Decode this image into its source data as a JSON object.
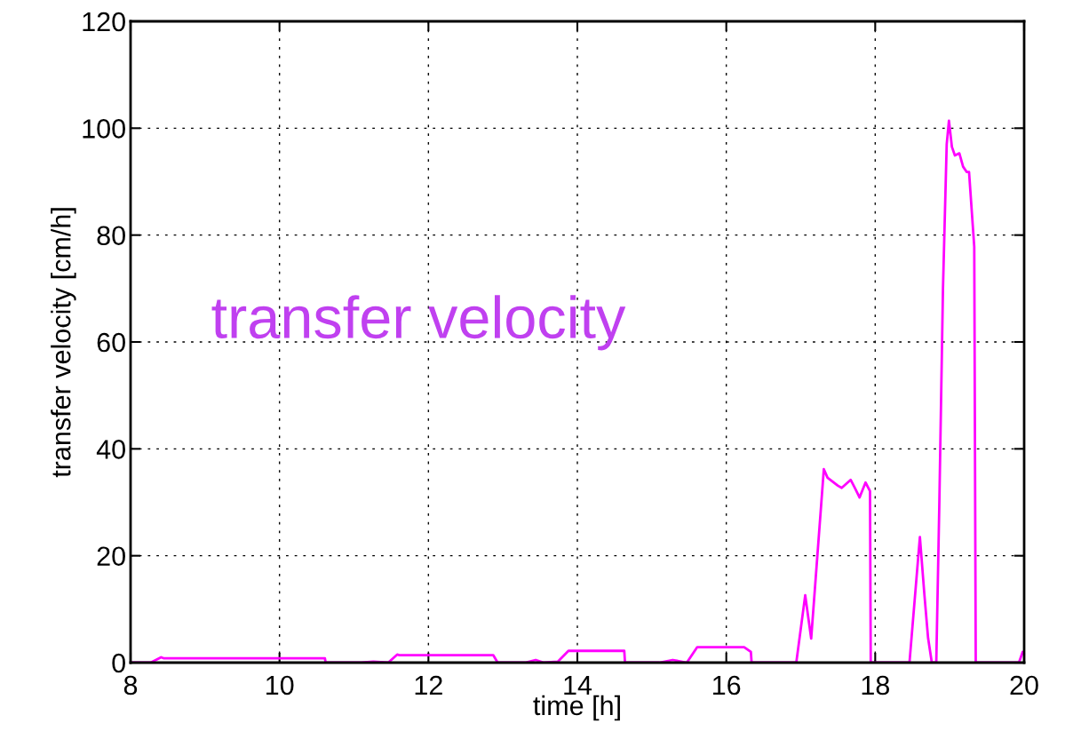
{
  "chart_data": {
    "type": "line",
    "xlabel": "time [h]",
    "ylabel": "transfer velocity [cm/h]",
    "annotations": [
      "transfer velocity"
    ],
    "series": [
      {
        "color": "#ff00ff",
        "x": [
          8.0,
          8.27,
          8.41,
          8.45,
          10.61,
          10.62,
          11.1,
          11.26,
          11.46,
          11.58,
          11.61,
          12.87,
          12.93,
          13.3,
          13.44,
          13.55,
          13.74,
          13.88,
          14.63,
          14.64,
          15.1,
          15.28,
          15.47,
          15.61,
          16.24,
          16.33,
          16.34,
          16.94,
          17.06,
          17.14,
          17.31,
          17.36,
          17.5,
          17.55,
          17.67,
          17.73,
          17.79,
          17.87,
          17.93,
          17.94,
          18.46,
          18.6,
          18.66,
          18.71,
          18.76,
          18.82,
          18.86,
          18.91,
          18.96,
          18.99,
          19.03,
          19.07,
          19.13,
          19.18,
          19.23,
          19.26,
          19.33,
          19.35,
          19.93,
          19.98,
          20.0
        ],
        "values": [
          0,
          0,
          1.0,
          0.8,
          0.8,
          0,
          0,
          0.2,
          0,
          1.5,
          1.4,
          1.4,
          0,
          0,
          0.5,
          0,
          0.2,
          2.2,
          2.2,
          0,
          0,
          0.5,
          0,
          2.9,
          2.9,
          2.0,
          0,
          0,
          12.6,
          4.5,
          36.2,
          34.6,
          33.1,
          32.7,
          34.2,
          32.6,
          30.9,
          33.7,
          32.1,
          0,
          0,
          23.5,
          12.8,
          4.6,
          0,
          0,
          29,
          70,
          97,
          101.4,
          96.5,
          94.9,
          95.3,
          92.8,
          91.8,
          91.8,
          77.8,
          0,
          0,
          2.0,
          1.5
        ]
      }
    ],
    "xlim": [
      8,
      20
    ],
    "ylim": [
      0,
      120
    ],
    "xticks": [
      8,
      10,
      12,
      14,
      16,
      18,
      20
    ],
    "yticks": [
      0,
      20,
      40,
      60,
      80,
      100,
      120
    ],
    "grid": true,
    "legend": false,
    "marker": "none",
    "line_style": "solid"
  }
}
